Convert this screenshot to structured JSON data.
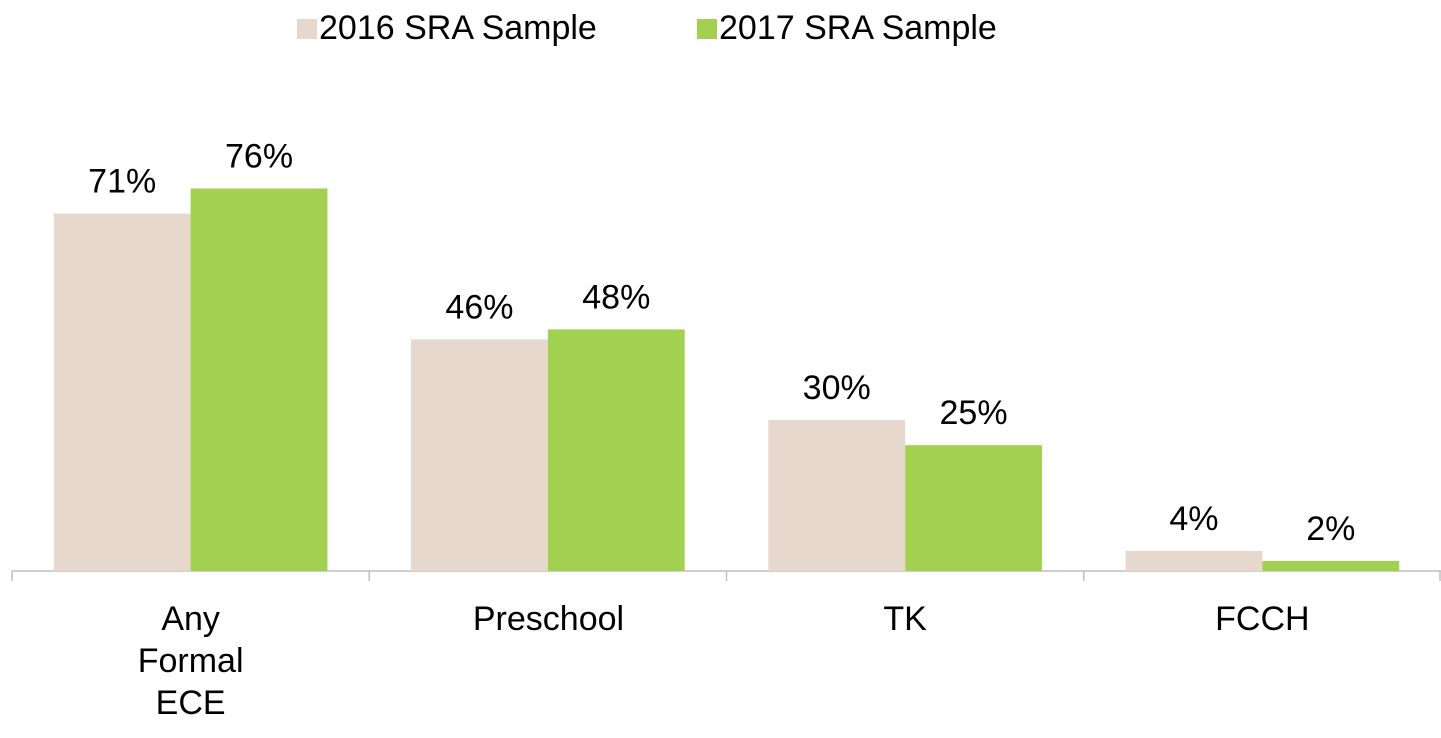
{
  "chart_data": {
    "type": "bar",
    "categories": [
      "Any Formal ECE",
      "Preschool",
      "TK",
      "FCCH"
    ],
    "series": [
      {
        "name": "2016 SRA Sample",
        "color": "#e6d8cc",
        "values": [
          71,
          46,
          30,
          4
        ],
        "value_labels": [
          "71%",
          "46%",
          "30%",
          "4%"
        ]
      },
      {
        "name": "2017 SRA Sample",
        "color": "#a2d152",
        "values": [
          76,
          48,
          25,
          2
        ],
        "value_labels": [
          "76%",
          "48%",
          "25%",
          "2%"
        ]
      }
    ],
    "ylim": [
      0,
      90
    ],
    "legend": "top"
  }
}
